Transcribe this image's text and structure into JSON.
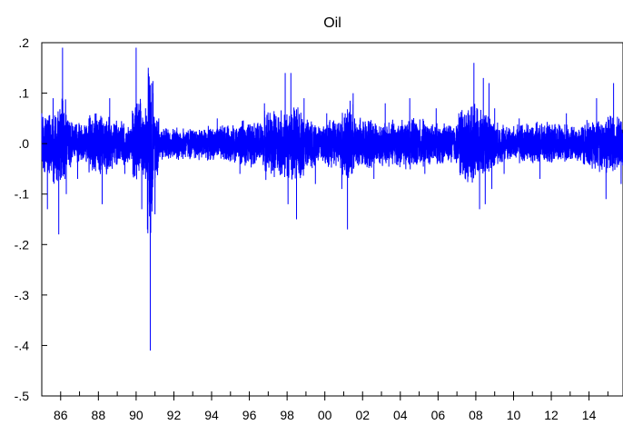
{
  "chart_data": {
    "type": "line",
    "title": "Oil",
    "xlabel": "",
    "ylabel": "",
    "x_range": [
      1985,
      2015.8
    ],
    "ylim": [
      -0.5,
      0.2
    ],
    "x_tick_values": [
      1986,
      1988,
      1990,
      1992,
      1994,
      1996,
      1998,
      2000,
      2002,
      2004,
      2006,
      2008,
      2010,
      2012,
      2014
    ],
    "x_tick_labels": [
      "86",
      "88",
      "90",
      "92",
      "94",
      "96",
      "98",
      "00",
      "02",
      "04",
      "06",
      "08",
      "10",
      "12",
      "14"
    ],
    "y_tick_values": [
      0.2,
      0.1,
      0.0,
      -0.1,
      -0.2,
      -0.3,
      -0.4,
      -0.5
    ],
    "y_tick_labels": [
      ".2",
      ".1",
      ".0",
      "-.1",
      "-.2",
      "-.3",
      "-.4",
      "-.5"
    ],
    "grid": false,
    "legend": "none",
    "series": [
      {
        "color": "#0000ff",
        "x": [
          1985.0,
          1985.3,
          1985.6,
          1985.9,
          1986.1,
          1986.3,
          1986.6,
          1986.9,
          1987.5,
          1988.2,
          1988.6,
          1989.4,
          1989.8,
          1990.0,
          1990.3,
          1990.5,
          1990.6,
          1990.75,
          1990.9,
          1991.0,
          1991.2,
          1992.5,
          1994.3,
          1995.5,
          1996.8,
          1997.9,
          1998.05,
          1998.2,
          1998.5,
          1998.9,
          1999.5,
          2000.1,
          2000.9,
          2001.2,
          2001.5,
          2002.6,
          2003.2,
          2004.5,
          2005.3,
          2005.9,
          2007.1,
          2007.9,
          2008.2,
          2008.4,
          2008.5,
          2008.7,
          2008.85,
          2009.0,
          2009.5,
          2010.3,
          2011.4,
          2012.8,
          2013.7,
          2014.4,
          2014.9,
          2015.3,
          2015.7
        ],
        "y": [
          0.06,
          -0.13,
          0.09,
          -0.18,
          0.19,
          -0.1,
          0.04,
          -0.07,
          0.05,
          -0.12,
          0.09,
          -0.06,
          0.05,
          0.19,
          -0.13,
          0.07,
          -0.17,
          -0.41,
          0.1,
          -0.14,
          0.05,
          0.03,
          0.05,
          -0.06,
          0.08,
          0.14,
          -0.12,
          0.14,
          -0.15,
          0.09,
          -0.08,
          0.06,
          -0.09,
          -0.17,
          0.1,
          -0.07,
          0.08,
          0.09,
          -0.06,
          0.07,
          0.06,
          0.16,
          -0.13,
          0.13,
          -0.12,
          0.12,
          -0.09,
          0.07,
          -0.06,
          0.05,
          -0.07,
          0.06,
          -0.04,
          0.09,
          -0.11,
          0.12,
          -0.08
        ]
      }
    ]
  }
}
